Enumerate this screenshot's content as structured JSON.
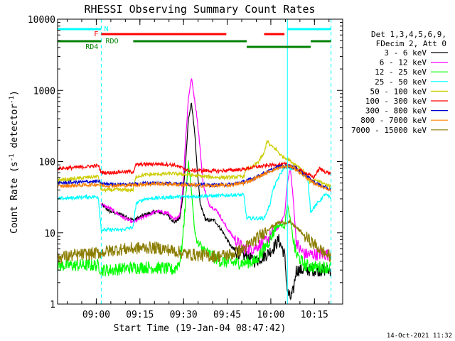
{
  "chart_data": {
    "type": "line",
    "title": "RHESSI Observing Summary Count Rates",
    "xlabel": "Start Time (19-Jan-04 08:47:42)",
    "ylabel_main": "Count Rate (s",
    "ylabel_sup1": "-1",
    "ylabel_mid": " detector",
    "ylabel_sup2": "-1",
    "ylabel_end": ")",
    "timestamp": "14-Oct-2021 11:32",
    "yscale": "log",
    "ylim": [
      1,
      10000
    ],
    "xlim_minutes": [
      0,
      98
    ],
    "x_ticks": [
      {
        "min": 13.3,
        "label": "09:00"
      },
      {
        "min": 28.3,
        "label": "09:15"
      },
      {
        "min": 43.3,
        "label": "09:30"
      },
      {
        "min": 58.3,
        "label": "09:45"
      },
      {
        "min": 73.3,
        "label": "10:00"
      },
      {
        "min": 88.3,
        "label": "10:15"
      }
    ],
    "y_ticks": [
      {
        "value": 1,
        "label": "1"
      },
      {
        "value": 10,
        "label": "10"
      },
      {
        "value": 100,
        "label": "100"
      },
      {
        "value": 1000,
        "label": "1000"
      },
      {
        "value": 10000,
        "label": "10000"
      }
    ],
    "legend_header": [
      "Det 1,3,4,5,6,9,",
      "FDecim 2, Att 0"
    ],
    "flags": [
      {
        "label": "N",
        "color": "#00ffff",
        "level": 0,
        "segments": [
          [
            0,
            15
          ],
          [
            79,
            94
          ]
        ]
      },
      {
        "label": "F",
        "color": "#ff0000",
        "level": 1,
        "segments": [
          [
            15,
            58
          ],
          [
            71,
            78
          ]
        ]
      },
      {
        "label": "RDO",
        "color": "#008000",
        "level": 2,
        "segments": [
          [
            0,
            15
          ],
          [
            26,
            65
          ],
          [
            87,
            94
          ]
        ]
      },
      {
        "label": "RD4",
        "color": "#008000",
        "level": 3,
        "segments": [
          [
            65,
            87
          ]
        ]
      }
    ],
    "dashed_lines_minutes": [
      15,
      94
    ],
    "series": [
      {
        "name": "3 - 6 keV",
        "color": "#000000",
        "points": [
          [
            15,
            25
          ],
          [
            18,
            20
          ],
          [
            22,
            18
          ],
          [
            26,
            15
          ],
          [
            30,
            18
          ],
          [
            34,
            20
          ],
          [
            38,
            18
          ],
          [
            40,
            14
          ],
          [
            42,
            16
          ],
          [
            43,
            30
          ],
          [
            44,
            100
          ],
          [
            45,
            400
          ],
          [
            46,
            650
          ],
          [
            47,
            300
          ],
          [
            48,
            80
          ],
          [
            49,
            25
          ],
          [
            51,
            15
          ],
          [
            54,
            15
          ],
          [
            57,
            10
          ],
          [
            60,
            6
          ],
          [
            63,
            5
          ],
          [
            66,
            4.5
          ],
          [
            68,
            4
          ],
          [
            70,
            4.5
          ],
          [
            72,
            5
          ],
          [
            74,
            6
          ],
          [
            76,
            8
          ],
          [
            78,
            5
          ],
          [
            79,
            1.5
          ],
          [
            80,
            1.2
          ],
          [
            81,
            1.5
          ],
          [
            82,
            3
          ],
          [
            85,
            3
          ],
          [
            88,
            3
          ],
          [
            91,
            3
          ],
          [
            94,
            3
          ]
        ]
      },
      {
        "name": "6 - 12 keV",
        "color": "#ff00ff",
        "points": [
          [
            15,
            25
          ],
          [
            18,
            22
          ],
          [
            22,
            17
          ],
          [
            26,
            14
          ],
          [
            30,
            17
          ],
          [
            34,
            20
          ],
          [
            38,
            19
          ],
          [
            40,
            15
          ],
          [
            42,
            18
          ],
          [
            43,
            40
          ],
          [
            44,
            200
          ],
          [
            45,
            800
          ],
          [
            46,
            1500
          ],
          [
            47,
            800
          ],
          [
            48,
            400
          ],
          [
            49,
            150
          ],
          [
            50,
            50
          ],
          [
            52,
            25
          ],
          [
            55,
            20
          ],
          [
            58,
            12
          ],
          [
            61,
            8
          ],
          [
            64,
            6
          ],
          [
            67,
            6
          ],
          [
            70,
            7
          ],
          [
            72,
            8
          ],
          [
            74,
            10
          ],
          [
            76,
            12
          ],
          [
            78,
            18
          ],
          [
            79,
            50
          ],
          [
            80,
            80
          ],
          [
            81,
            30
          ],
          [
            82,
            8
          ],
          [
            83,
            6
          ],
          [
            85,
            5
          ],
          [
            88,
            5
          ],
          [
            91,
            5
          ],
          [
            94,
            5
          ]
        ]
      },
      {
        "name": "12 - 25 keV",
        "color": "#00ff00",
        "points": [
          [
            0,
            3.5
          ],
          [
            5,
            3.5
          ],
          [
            10,
            3.5
          ],
          [
            14,
            3.5
          ],
          [
            15,
            3
          ],
          [
            18,
            3
          ],
          [
            24,
            3.2
          ],
          [
            30,
            3.3
          ],
          [
            36,
            3.2
          ],
          [
            40,
            3
          ],
          [
            42,
            4
          ],
          [
            43,
            8
          ],
          [
            44,
            30
          ],
          [
            45,
            100
          ],
          [
            46,
            40
          ],
          [
            47,
            12
          ],
          [
            48,
            7
          ],
          [
            52,
            5
          ],
          [
            56,
            4
          ],
          [
            60,
            3.8
          ],
          [
            64,
            3.8
          ],
          [
            68,
            4
          ],
          [
            71,
            6
          ],
          [
            73,
            8
          ],
          [
            75,
            12
          ],
          [
            77,
            13
          ],
          [
            78,
            12
          ],
          [
            79,
            25
          ],
          [
            80,
            15
          ],
          [
            81,
            8
          ],
          [
            82,
            5
          ],
          [
            85,
            3.5
          ],
          [
            88,
            3.3
          ],
          [
            91,
            3.3
          ],
          [
            94,
            3.3
          ]
        ]
      },
      {
        "name": "25 - 50 keV",
        "color": "#00ffff",
        "points": [
          [
            0,
            30
          ],
          [
            5,
            31
          ],
          [
            10,
            32
          ],
          [
            14,
            32
          ],
          [
            15,
            11
          ],
          [
            18,
            11
          ],
          [
            22,
            11
          ],
          [
            26,
            12
          ],
          [
            27,
            26
          ],
          [
            30,
            30
          ],
          [
            35,
            31
          ],
          [
            40,
            32
          ],
          [
            45,
            32
          ],
          [
            50,
            33
          ],
          [
            55,
            33
          ],
          [
            60,
            34
          ],
          [
            64,
            34
          ],
          [
            65,
            16
          ],
          [
            68,
            16
          ],
          [
            71,
            16
          ],
          [
            73,
            25
          ],
          [
            74,
            40
          ],
          [
            76,
            60
          ],
          [
            78,
            85
          ],
          [
            80,
            80
          ],
          [
            82,
            80
          ],
          [
            84,
            70
          ],
          [
            86,
            60
          ],
          [
            87,
            20
          ],
          [
            89,
            25
          ],
          [
            92,
            35
          ],
          [
            94,
            30
          ]
        ]
      },
      {
        "name": "50 - 100 keV",
        "color": "#cccc00",
        "points": [
          [
            0,
            55
          ],
          [
            5,
            57
          ],
          [
            10,
            60
          ],
          [
            14,
            62
          ],
          [
            15,
            40
          ],
          [
            18,
            40
          ],
          [
            22,
            40
          ],
          [
            26,
            40
          ],
          [
            27,
            62
          ],
          [
            30,
            65
          ],
          [
            35,
            67
          ],
          [
            40,
            68
          ],
          [
            45,
            65
          ],
          [
            50,
            62
          ],
          [
            55,
            60
          ],
          [
            60,
            60
          ],
          [
            64,
            62
          ],
          [
            65,
            80
          ],
          [
            67,
            82
          ],
          [
            69,
            100
          ],
          [
            71,
            130
          ],
          [
            72,
            200
          ],
          [
            73,
            170
          ],
          [
            75,
            150
          ],
          [
            77,
            120
          ],
          [
            79,
            110
          ],
          [
            81,
            95
          ],
          [
            83,
            85
          ],
          [
            85,
            70
          ],
          [
            87,
            50
          ],
          [
            89,
            55
          ],
          [
            92,
            48
          ],
          [
            94,
            45
          ]
        ]
      },
      {
        "name": "100 - 300 keV",
        "color": "#ff0000",
        "points": [
          [
            0,
            80
          ],
          [
            5,
            82
          ],
          [
            10,
            85
          ],
          [
            14,
            88
          ],
          [
            15,
            70
          ],
          [
            18,
            70
          ],
          [
            22,
            72
          ],
          [
            26,
            72
          ],
          [
            27,
            90
          ],
          [
            30,
            92
          ],
          [
            35,
            93
          ],
          [
            40,
            90
          ],
          [
            45,
            75
          ],
          [
            50,
            75
          ],
          [
            55,
            74
          ],
          [
            58,
            75
          ],
          [
            60,
            76
          ],
          [
            64,
            78
          ],
          [
            66,
            82
          ],
          [
            70,
            86
          ],
          [
            74,
            90
          ],
          [
            78,
            92
          ],
          [
            80,
            88
          ],
          [
            82,
            80
          ],
          [
            85,
            70
          ],
          [
            88,
            60
          ],
          [
            90,
            80
          ],
          [
            92,
            72
          ],
          [
            94,
            68
          ]
        ]
      },
      {
        "name": "300 - 800 keV",
        "color": "#0000cc",
        "points": [
          [
            0,
            50
          ],
          [
            5,
            51
          ],
          [
            10,
            52
          ],
          [
            14,
            53
          ],
          [
            15,
            49
          ],
          [
            20,
            48
          ],
          [
            26,
            48
          ],
          [
            30,
            50
          ],
          [
            35,
            50
          ],
          [
            40,
            50
          ],
          [
            45,
            48
          ],
          [
            50,
            47
          ],
          [
            55,
            47
          ],
          [
            60,
            48
          ],
          [
            64,
            52
          ],
          [
            68,
            60
          ],
          [
            72,
            72
          ],
          [
            76,
            85
          ],
          [
            80,
            88
          ],
          [
            82,
            80
          ],
          [
            85,
            65
          ],
          [
            88,
            52
          ],
          [
            91,
            45
          ],
          [
            94,
            40
          ]
        ]
      },
      {
        "name": "800 - 7000 keV",
        "color": "#ff8000",
        "points": [
          [
            0,
            45
          ],
          [
            5,
            46
          ],
          [
            10,
            47
          ],
          [
            14,
            48
          ],
          [
            15,
            46
          ],
          [
            20,
            46
          ],
          [
            26,
            47
          ],
          [
            30,
            48
          ],
          [
            35,
            49
          ],
          [
            40,
            48
          ],
          [
            45,
            47
          ],
          [
            50,
            46
          ],
          [
            55,
            46
          ],
          [
            60,
            47
          ],
          [
            64,
            50
          ],
          [
            68,
            58
          ],
          [
            72,
            70
          ],
          [
            76,
            82
          ],
          [
            80,
            86
          ],
          [
            82,
            78
          ],
          [
            85,
            62
          ],
          [
            88,
            50
          ],
          [
            91,
            44
          ],
          [
            94,
            40
          ]
        ]
      },
      {
        "name": "7000 - 15000 keV",
        "color": "#8b7d00",
        "points": [
          [
            0,
            4.5
          ],
          [
            5,
            4.8
          ],
          [
            10,
            5
          ],
          [
            14,
            5.2
          ],
          [
            15,
            5.3
          ],
          [
            20,
            5.8
          ],
          [
            26,
            6
          ],
          [
            30,
            6.2
          ],
          [
            35,
            6.1
          ],
          [
            40,
            5.6
          ],
          [
            45,
            5
          ],
          [
            50,
            4.8
          ],
          [
            55,
            4.7
          ],
          [
            60,
            5
          ],
          [
            64,
            6
          ],
          [
            68,
            8
          ],
          [
            72,
            11
          ],
          [
            76,
            14
          ],
          [
            80,
            14
          ],
          [
            82,
            12
          ],
          [
            85,
            9
          ],
          [
            88,
            7
          ],
          [
            91,
            5.5
          ],
          [
            94,
            4.5
          ]
        ]
      }
    ]
  }
}
